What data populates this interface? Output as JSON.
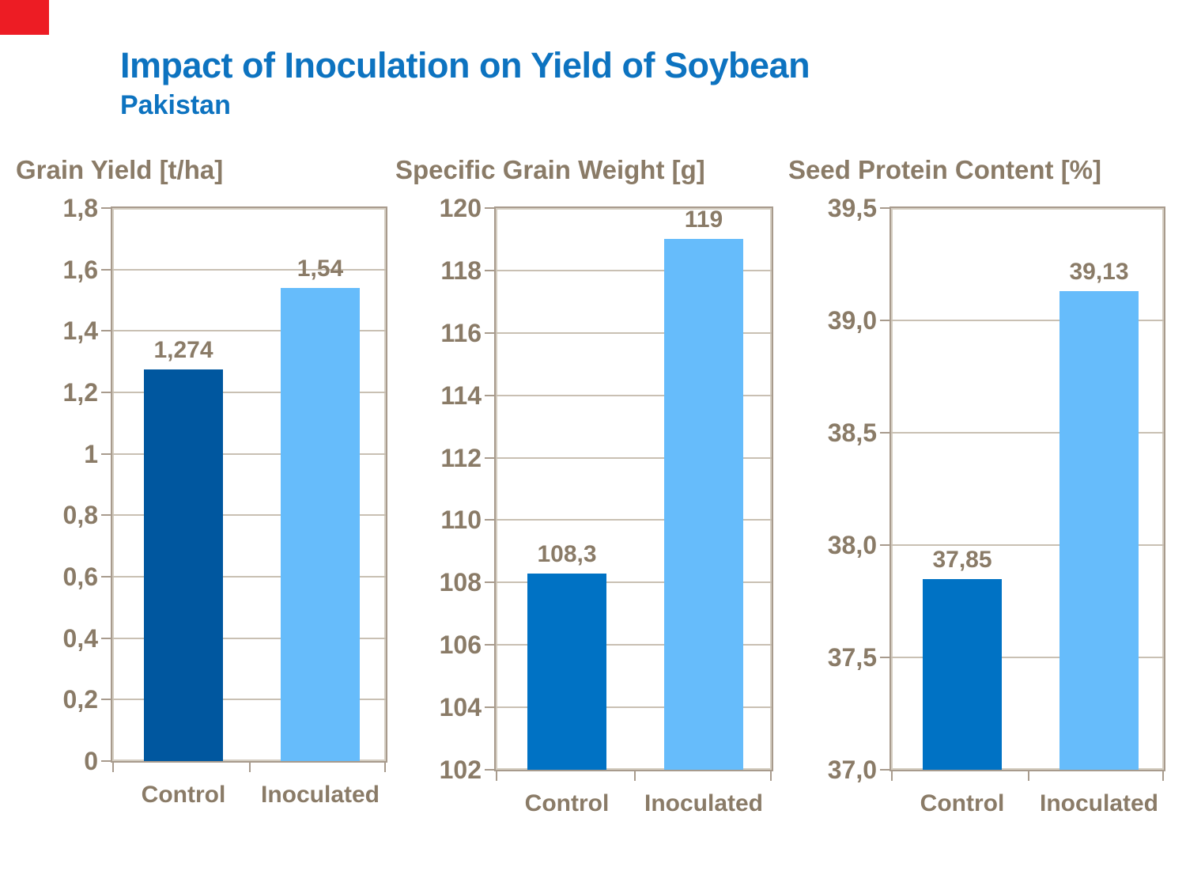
{
  "slide": {
    "corner_accent": {
      "color": "#ED1C24"
    },
    "header": {
      "title": "Impact of Inoculation on Yield of Soybean",
      "subtitle": "Pakistan",
      "title_color": "#0d73c0"
    }
  },
  "palette": {
    "text_brown": "#8a7b67",
    "frame_border": "#a89b8d",
    "frame_inner_highlight": "#d5cec2",
    "gridline": "#c9c0b3",
    "control_dark_blue": "#00579f",
    "control_blue": "#0072c4",
    "inoculated_light_blue": "#66bcfb"
  },
  "chart_data": [
    {
      "type": "bar",
      "title": "Grain Yield [t/ha]",
      "categories": [
        "Control",
        "Inoculated"
      ],
      "values": [
        1.274,
        1.54
      ],
      "value_labels": [
        "1,274",
        "1,54"
      ],
      "bar_colors": [
        "#00579f",
        "#66bcfb"
      ],
      "ylim": [
        0,
        1.8
      ],
      "ytick_values": [
        1.8,
        1.6,
        1.4,
        1.2,
        1.0,
        0.8,
        0.6,
        0.4,
        0.2,
        0
      ],
      "ytick_labels": [
        "1,8",
        "1,6",
        "1,4",
        "1,2",
        "1",
        "0,8",
        "0,6",
        "0,4",
        "0,2",
        "0"
      ],
      "grid": true,
      "legend": "none"
    },
    {
      "type": "bar",
      "title": "Specific Grain Weight [g]",
      "categories": [
        "Control",
        "Inoculated"
      ],
      "values": [
        108.3,
        119
      ],
      "value_labels": [
        "108,3",
        "119"
      ],
      "bar_colors": [
        "#0072c4",
        "#66bcfb"
      ],
      "ylim": [
        102,
        120
      ],
      "ytick_values": [
        120,
        118,
        116,
        114,
        112,
        110,
        108,
        106,
        104,
        102
      ],
      "ytick_labels": [
        "120",
        "118",
        "116",
        "114",
        "112",
        "110",
        "108",
        "106",
        "104",
        "102"
      ],
      "grid": true,
      "legend": "none"
    },
    {
      "type": "bar",
      "title": "Seed Protein Content [%]",
      "categories": [
        "Control",
        "Inoculated"
      ],
      "values": [
        37.85,
        39.13
      ],
      "value_labels": [
        "37,85",
        "39,13"
      ],
      "bar_colors": [
        "#0072c4",
        "#66bcfb"
      ],
      "ylim": [
        37.0,
        39.5
      ],
      "ytick_values": [
        39.5,
        39.0,
        38.5,
        38.0,
        37.5,
        37.0
      ],
      "ytick_labels": [
        "39,5",
        "39,0",
        "38,5",
        "38,0",
        "37,5",
        "37,0"
      ],
      "grid": true,
      "legend": "none"
    }
  ]
}
